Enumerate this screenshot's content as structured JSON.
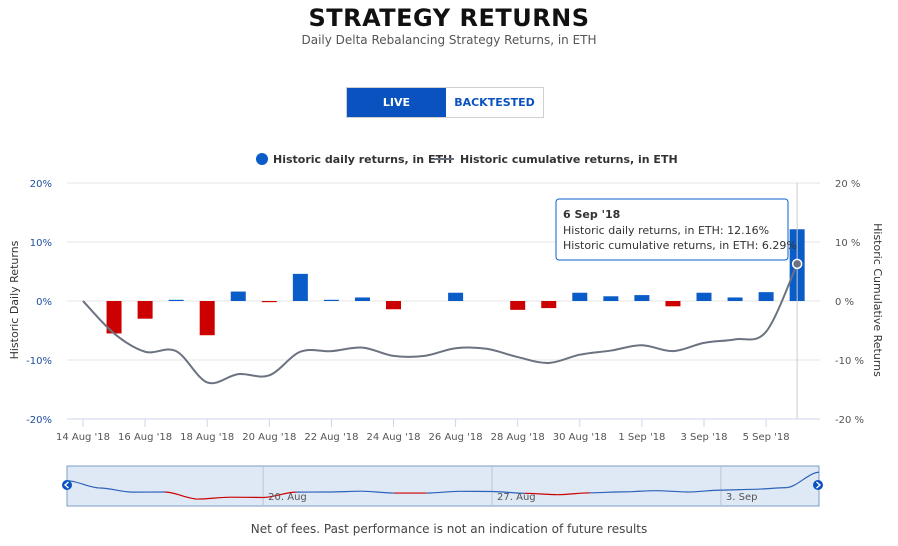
{
  "header": {
    "title": "STRATEGY RETURNS",
    "subtitle": "Daily Delta Rebalancing Strategy Returns, in ETH"
  },
  "toggle": {
    "live_label": "LIVE",
    "backtested_label": "BACKTESTED",
    "selected": "LIVE"
  },
  "footer": {
    "note": "Net of fees. Past performance is not an indication of future results"
  },
  "colors": {
    "positive": "#0a5cc9",
    "negative": "#cc0000",
    "line": "#6b7280",
    "accent": "#0a52bf"
  },
  "chart_data": {
    "type": "bar+line",
    "legend": {
      "placement": "top-center",
      "bars_label": "Historic daily returns, in ETH",
      "line_label": "Historic cumulative returns, in ETH"
    },
    "y_left": {
      "label": "Historic Daily Returns",
      "ticks": [
        "20%",
        "10%",
        "0%",
        "-10%",
        "-20%"
      ],
      "range": [
        -20,
        20
      ]
    },
    "y_right": {
      "label": "Historic Cumulative Returns",
      "ticks": [
        "20 %",
        "10 %",
        "0 %",
        "-10 %",
        "-20 %"
      ],
      "range": [
        -20,
        20
      ]
    },
    "x_ticks": [
      "14 Aug '18",
      "16 Aug '18",
      "18 Aug '18",
      "20 Aug '18",
      "22 Aug '18",
      "24 Aug '18",
      "26 Aug '18",
      "28 Aug '18",
      "30 Aug '18",
      "1 Sep '18",
      "3 Sep '18",
      "5 Sep '18"
    ],
    "grid": true,
    "series": [
      {
        "name": "Historic daily returns, in ETH",
        "kind": "bar",
        "points": [
          [
            "15 Aug",
            -5.5
          ],
          [
            "16 Aug",
            -3.0
          ],
          [
            "17 Aug",
            0.2
          ],
          [
            "18 Aug",
            -5.8
          ],
          [
            "19 Aug",
            1.6
          ],
          [
            "20 Aug",
            -0.2
          ],
          [
            "21 Aug",
            4.6
          ],
          [
            "22 Aug",
            0.2
          ],
          [
            "23 Aug",
            0.6
          ],
          [
            "24 Aug",
            -1.4
          ],
          [
            "25 Aug",
            0.0
          ],
          [
            "26 Aug",
            1.4
          ],
          [
            "27 Aug",
            0.0
          ],
          [
            "28 Aug",
            -1.5
          ],
          [
            "29 Aug",
            -1.2
          ],
          [
            "30 Aug",
            1.4
          ],
          [
            "31 Aug",
            0.8
          ],
          [
            "1 Sep",
            1.0
          ],
          [
            "2 Sep",
            -0.9
          ],
          [
            "3 Sep",
            1.4
          ],
          [
            "4 Sep",
            0.6
          ],
          [
            "5 Sep",
            1.5
          ],
          [
            "6 Sep",
            12.16
          ]
        ]
      },
      {
        "name": "Historic cumulative returns, in ETH",
        "kind": "line",
        "points": [
          [
            "14 Aug",
            0.0
          ],
          [
            "15 Aug",
            -5.5
          ],
          [
            "16 Aug",
            -8.6
          ],
          [
            "17 Aug",
            -8.5
          ],
          [
            "18 Aug",
            -13.8
          ],
          [
            "19 Aug",
            -12.4
          ],
          [
            "20 Aug",
            -12.6
          ],
          [
            "21 Aug",
            -8.6
          ],
          [
            "22 Aug",
            -8.5
          ],
          [
            "23 Aug",
            -7.9
          ],
          [
            "24 Aug",
            -9.3
          ],
          [
            "25 Aug",
            -9.3
          ],
          [
            "26 Aug",
            -8.0
          ],
          [
            "27 Aug",
            -8.1
          ],
          [
            "28 Aug",
            -9.5
          ],
          [
            "29 Aug",
            -10.5
          ],
          [
            "30 Aug",
            -9.1
          ],
          [
            "31 Aug",
            -8.4
          ],
          [
            "1 Sep",
            -7.5
          ],
          [
            "2 Sep",
            -8.5
          ],
          [
            "3 Sep",
            -7.1
          ],
          [
            "4 Sep",
            -6.5
          ],
          [
            "5 Sep",
            -5.2
          ],
          [
            "6 Sep",
            6.29
          ]
        ]
      }
    ],
    "tooltip": {
      "date": "6 Sep '18",
      "daily_line": "Historic daily returns, in ETH: 12.16%",
      "cumulative_line": "Historic cumulative returns, in ETH: 6.29%"
    },
    "navigator": {
      "labels": [
        "20. Aug",
        "27. Aug",
        "3. Sep"
      ]
    }
  }
}
